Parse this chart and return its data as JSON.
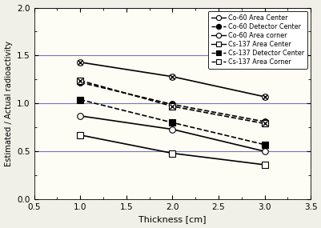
{
  "x": [
    1.0,
    2.0,
    3.0
  ],
  "series": {
    "Co-60 Area Center": [
      0.87,
      0.73,
      0.5
    ],
    "Co-60 Detector Center": [
      1.22,
      0.99,
      0.81
    ],
    "Co-60 Area corner": [
      1.43,
      1.28,
      1.07
    ],
    "Cs-137 Area Center": [
      0.67,
      0.48,
      0.36
    ],
    "Cs-137 Detector Center": [
      1.04,
      0.8,
      0.57
    ],
    "Cs-137 Area Corner": [
      1.24,
      0.97,
      0.79
    ]
  },
  "line_styles": {
    "Co-60 Area Center": "-",
    "Co-60 Detector Center": "--",
    "Co-60 Area corner": "-",
    "Cs-137 Area Center": "-",
    "Cs-137 Detector Center": "--",
    "Cs-137 Area Corner": "--"
  },
  "markers": {
    "Co-60 Area Center": "o",
    "Co-60 Detector Center": "o",
    "Co-60 Area corner": "o",
    "Cs-137 Area Center": "s",
    "Cs-137 Detector Center": "s",
    "Cs-137 Area Corner": "s"
  },
  "marker_fill": {
    "Co-60 Area Center": "white",
    "Co-60 Detector Center": "black",
    "Co-60 Area corner": "white",
    "Cs-137 Area Center": "white",
    "Cs-137 Detector Center": "black",
    "Cs-137 Area Corner": "white"
  },
  "marker_extra": {
    "Co-60 Area Center": false,
    "Co-60 Detector Center": false,
    "Co-60 Area corner": true,
    "Cs-137 Area Center": false,
    "Cs-137 Detector Center": false,
    "Cs-137 Area Corner": true
  },
  "xlabel": "Thickness [cm]",
  "ylabel": "Estimated / Actual radioactivity",
  "xlim": [
    0.5,
    3.5
  ],
  "ylim": [
    0.0,
    2.0
  ],
  "yticks": [
    0.0,
    0.5,
    1.0,
    1.5,
    2.0
  ],
  "xticks": [
    0.5,
    1.0,
    1.5,
    2.0,
    2.5,
    3.0,
    3.5
  ],
  "hlines": [
    0.5,
    1.0,
    1.5,
    2.0
  ],
  "hline_color": "#7777bb",
  "plot_bg_color": "#fdfdf5",
  "background_color": "#f0f0e8",
  "linewidth": 1.2,
  "markersize": 5.5
}
